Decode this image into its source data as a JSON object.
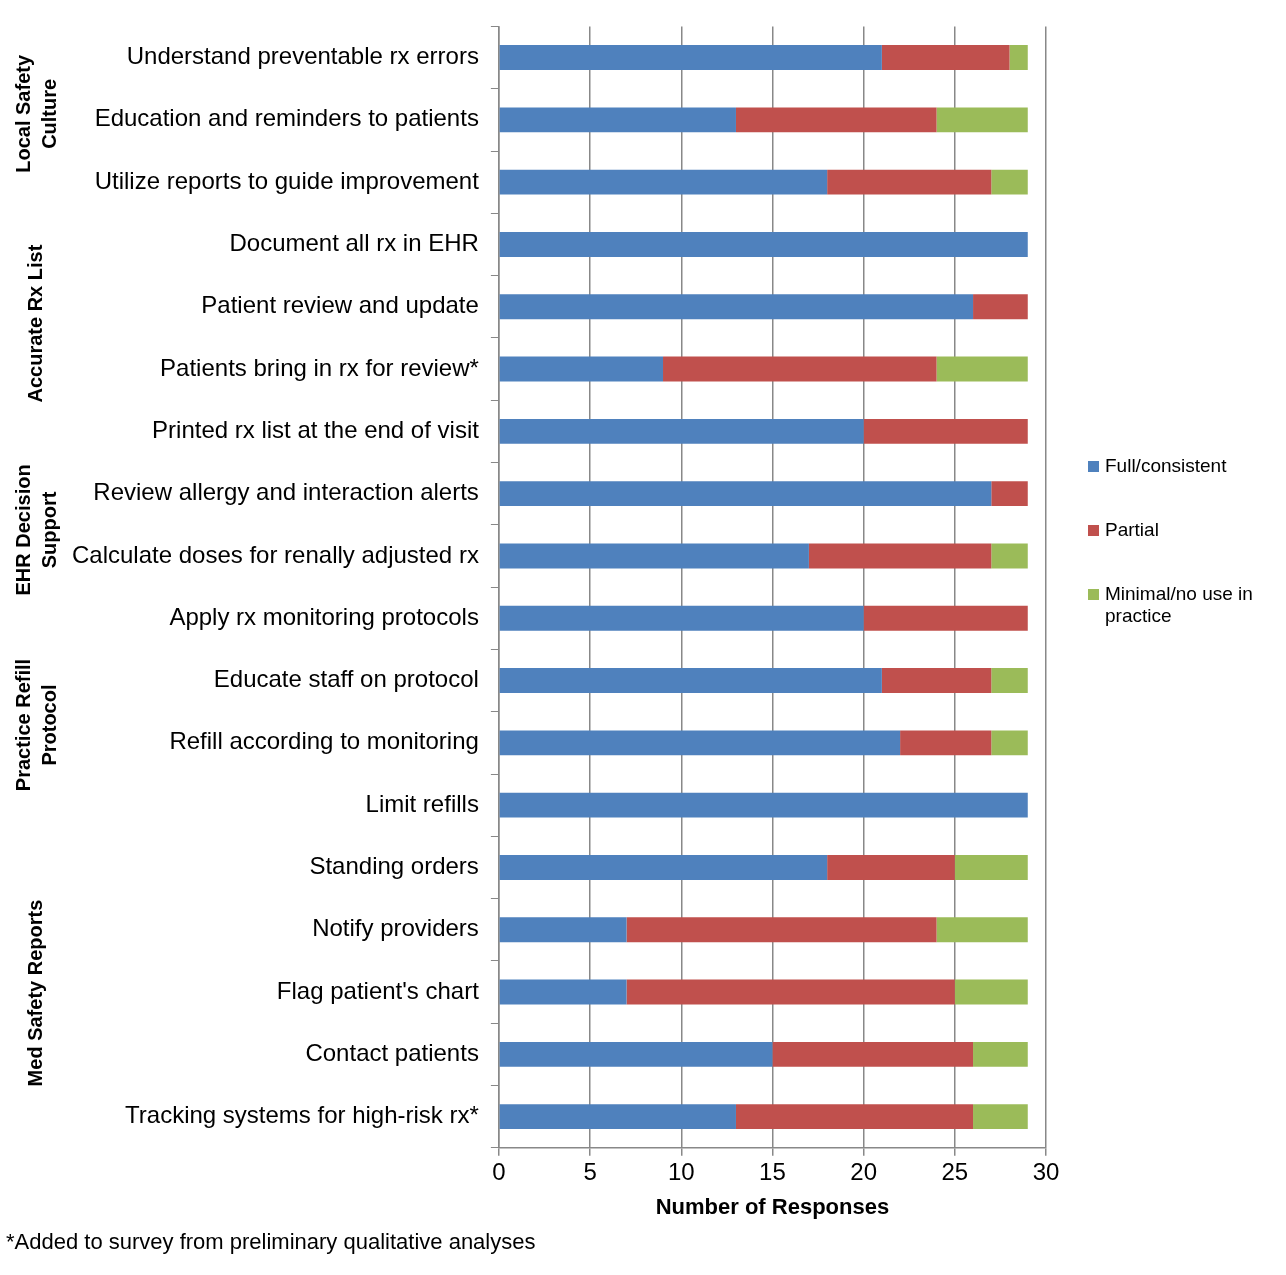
{
  "chart_data": {
    "type": "bar",
    "orientation": "horizontal",
    "stacked": true,
    "xlabel": "Number of Responses",
    "categories": [
      "Understand preventable rx errors",
      "Education and reminders to patients",
      "Utilize reports to guide improvement",
      "Document all rx in EHR",
      "Patient review and update",
      "Patients bring in rx for review*",
      "Printed rx list at the end of visit",
      "Review allergy and interaction alerts",
      "Calculate doses for renally adjusted rx",
      "Apply rx monitoring protocols",
      "Educate staff on protocol",
      "Refill according to monitoring",
      "Limit refills",
      "Standing orders",
      "Notify providers",
      "Flag patient's chart",
      "Contact patients",
      "Tracking systems for high-risk rx*"
    ],
    "series": [
      {
        "name": "Full/consistent",
        "color": "#4f81bd",
        "values": [
          21,
          13,
          18,
          29,
          26,
          9,
          20,
          27,
          17,
          20,
          21,
          22,
          29,
          18,
          7,
          7,
          15,
          13
        ]
      },
      {
        "name": "Partial",
        "color": "#c0504d",
        "values": [
          7,
          11,
          9,
          0,
          3,
          15,
          9,
          2,
          10,
          9,
          6,
          5,
          0,
          7,
          17,
          18,
          11,
          13
        ]
      },
      {
        "name": "Minimal/no use in practice",
        "color": "#9bbb59",
        "values": [
          1,
          5,
          2,
          0,
          0,
          5,
          0,
          0,
          2,
          0,
          2,
          2,
          0,
          4,
          5,
          4,
          3,
          3
        ]
      }
    ],
    "xlim": [
      0,
      30
    ],
    "xticks": [
      0,
      5,
      10,
      15,
      20,
      25,
      30
    ],
    "grid": "x",
    "legend": "right",
    "annotations": [
      "Local Safety Culture",
      "Accurate Rx List",
      "EHR Decision Support",
      "Practice Refill Protocol",
      "Med Safety Reports",
      "*Added to survey from preliminary qualitative analyses"
    ]
  }
}
